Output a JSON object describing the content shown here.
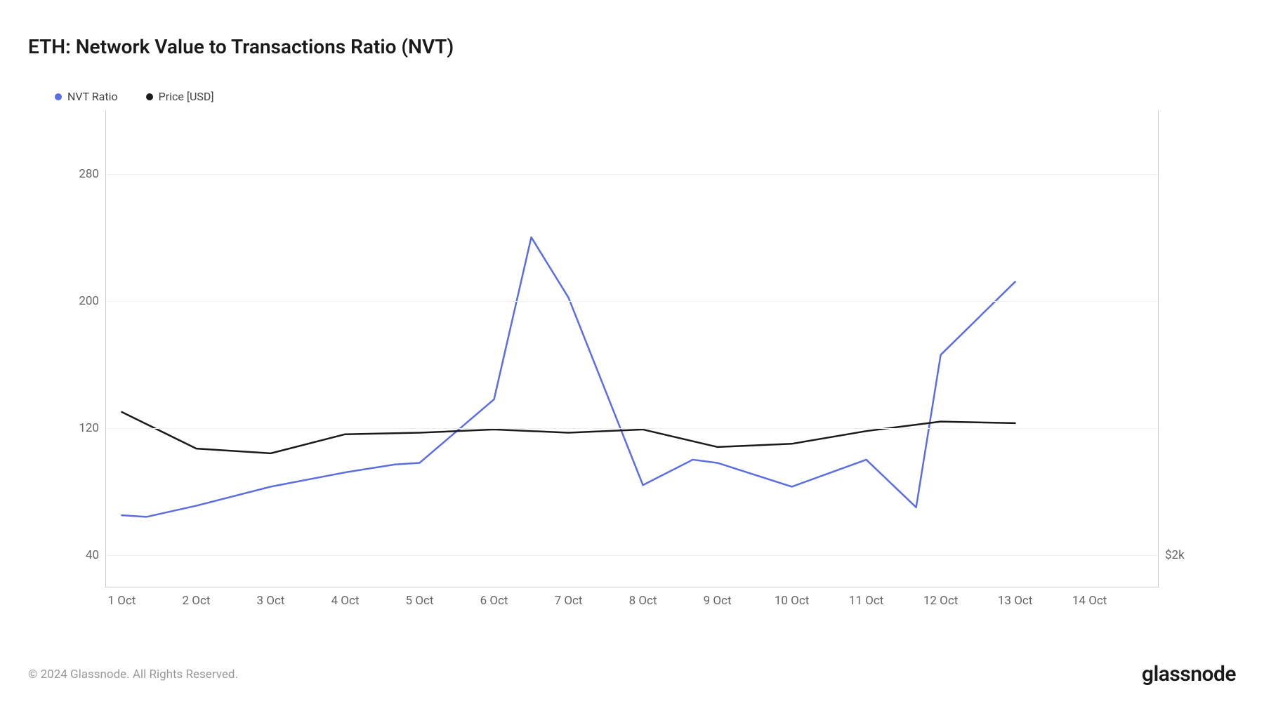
{
  "chart": {
    "type": "line",
    "title": "ETH: Network Value to Transactions Ratio (NVT)",
    "legend": [
      {
        "label": "NVT Ratio",
        "color": "#5b6ee1"
      },
      {
        "label": "Price [USD]",
        "color": "#1a1a1a"
      }
    ],
    "x": {
      "labels": [
        "1 Oct",
        "2 Oct",
        "3 Oct",
        "4 Oct",
        "5 Oct",
        "6 Oct",
        "7 Oct",
        "8 Oct",
        "9 Oct",
        "10 Oct",
        "11 Oct",
        "12 Oct",
        "13 Oct",
        "14 Oct"
      ]
    },
    "y_left": {
      "min": 20,
      "max": 320,
      "ticks": [
        40,
        120,
        200,
        280
      ]
    },
    "y_right": {
      "ticks": [
        {
          "pos": 40,
          "label": "$2k"
        }
      ]
    },
    "series": [
      {
        "name": "NVT Ratio",
        "color": "#5b6ee1",
        "width": 2.5,
        "x_idx": [
          0,
          0.33,
          1,
          2,
          3,
          3.67,
          4,
          5,
          5.5,
          6,
          7,
          7.67,
          8,
          9,
          10,
          10.67,
          11,
          12
        ],
        "y": [
          65,
          64,
          71,
          83,
          92,
          97,
          98,
          138,
          240,
          202,
          84,
          100,
          98,
          83,
          100,
          70,
          166,
          212
        ]
      },
      {
        "name": "Price [USD]",
        "color": "#1a1a1a",
        "width": 2.5,
        "x_idx": [
          0,
          1,
          2,
          3,
          4,
          5,
          6,
          7,
          8,
          9,
          10,
          11,
          12
        ],
        "y": [
          130,
          107,
          104,
          116,
          117,
          119,
          117,
          119,
          108,
          110,
          118,
          124,
          123
        ]
      }
    ],
    "background_color": "#ffffff",
    "grid_color": "#f0f0f0",
    "axis_color": "#cccccc",
    "label_color": "#666666",
    "title_color": "#1a1a1a",
    "title_fontsize": 28,
    "label_fontsize": 17
  },
  "footer": {
    "copyright": "© 2024 Glassnode. All Rights Reserved.",
    "brand": "glassnode"
  }
}
